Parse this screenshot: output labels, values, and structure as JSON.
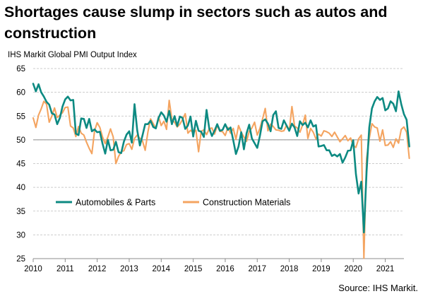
{
  "title": "Shortages cause slump in sectors such as autos and construction",
  "source": "Source: IHS Markit.",
  "chart_data": {
    "type": "line",
    "title": "Shortages cause slump in sectors such as autos and construction",
    "subtitle": "IHS Markit Global PMI Output Index",
    "xlabel": "",
    "ylabel": "",
    "x_start": "2010-01",
    "x_end": "2021-07",
    "x_ticks": [
      "2010",
      "2011",
      "2012",
      "2013",
      "2014",
      "2015",
      "2016",
      "2017",
      "2018",
      "2019",
      "2020",
      "2021"
    ],
    "y_ticks": [
      25,
      30,
      35,
      40,
      45,
      50,
      55,
      60,
      65
    ],
    "ylim": [
      25,
      65
    ],
    "reference_line": 50,
    "grid": "horizontal dashed",
    "legend_position": "lower-left",
    "series": [
      {
        "name": "Automobiles & Parts",
        "color": "#0d8a82",
        "values": [
          61.8,
          60.2,
          61.7,
          60.0,
          59.1,
          58.0,
          57.4,
          55.6,
          55.3,
          53.3,
          54.6,
          57.0,
          58.5,
          59.1,
          58.3,
          58.4,
          51.3,
          51.0,
          54.5,
          54.4,
          52.5,
          54.4,
          51.8,
          52.2,
          51.6,
          51.7,
          49.2,
          47.1,
          50.0,
          47.8,
          47.9,
          49.6,
          47.4,
          47.2,
          49.6,
          51.1,
          51.8,
          49.4,
          57.5,
          52.0,
          48.8,
          51.0,
          53.3,
          53.3,
          54.0,
          52.7,
          52.4,
          54.6,
          55.8,
          55.1,
          53.8,
          56.1,
          53.3,
          55.0,
          52.9,
          54.9,
          54.6,
          52.3,
          53.0,
          54.9,
          50.7,
          54.0,
          51.9,
          51.7,
          50.6,
          56.3,
          52.4,
          50.8,
          51.9,
          53.3,
          51.9,
          52.1,
          53.3,
          52.1,
          52.6,
          49.9,
          47.0,
          48.6,
          51.6,
          48.0,
          51.4,
          53.2,
          50.3,
          49.3,
          48.3,
          50.8,
          53.9,
          54.3,
          53.4,
          51.8,
          55.2,
          56.0,
          52.5,
          52.3,
          54.1,
          53.0,
          51.9,
          53.4,
          52.6,
          50.8,
          53.9,
          53.1,
          53.6,
          52.6,
          54.1,
          52.8,
          53.1,
          48.6,
          48.7,
          48.9,
          47.8,
          47.8,
          46.6,
          46.9,
          46.5,
          47.0,
          45.2,
          46.3,
          47.7,
          47.8,
          49.9,
          42.8,
          38.7,
          41.2,
          30.5,
          43.3,
          52.6,
          56.6,
          58.1,
          59.0,
          58.4,
          58.8,
          56.2,
          56.6,
          58.1,
          57.6,
          56.0,
          60.2,
          57.5,
          55.4,
          54.2,
          48.6
        ]
      },
      {
        "name": "Construction Materials",
        "color": "#f4a460",
        "values": [
          54.6,
          52.6,
          55.2,
          56.5,
          58.1,
          57.5,
          53.7,
          55.0,
          56.7,
          54.7,
          55.2,
          55.7,
          56.8,
          56.9,
          52.9,
          52.5,
          50.7,
          52.8,
          51.4,
          51.0,
          49.5,
          48.2,
          47.1,
          51.9,
          53.6,
          52.6,
          50.6,
          49.2,
          50.6,
          52.3,
          50.6,
          45.0,
          46.5,
          47.5,
          47.7,
          49.0,
          49.2,
          48.0,
          50.3,
          51.0,
          50.3,
          49.7,
          47.8,
          51.6,
          54.4,
          53.4,
          52.4,
          54.8,
          53.0,
          53.9,
          52.2,
          58.3,
          54.3,
          53.7,
          52.7,
          53.3,
          54.3,
          55.5,
          51.4,
          52.0,
          51.5,
          52.0,
          47.5,
          51.8,
          52.1,
          51.1,
          52.3,
          52.5,
          51.2,
          53.0,
          51.8,
          51.7,
          50.9,
          52.6,
          51.4,
          52.4,
          50.1,
          53.0,
          51.6,
          50.6,
          49.7,
          51.8,
          52.5,
          53.7,
          51.0,
          52.4,
          54.4,
          56.6,
          51.9,
          53.3,
          52.8,
          52.1,
          52.0,
          51.8,
          51.9,
          53.1,
          51.9,
          57.0,
          52.9,
          52.5,
          51.6,
          53.1,
          55.2,
          50.3,
          52.4,
          51.6,
          50.2,
          51.2,
          50.8,
          51.9,
          51.7,
          51.4,
          50.7,
          51.6,
          50.6,
          49.6,
          50.2,
          50.9,
          49.8,
          50.4,
          48.8,
          48.4,
          50.2,
          51.0,
          25.1,
          46.0,
          50.3,
          53.4,
          52.7,
          52.5,
          49.7,
          52.1,
          48.8,
          48.9,
          49.6,
          48.4,
          50.2,
          49.3,
          52.2,
          52.7,
          51.6,
          46.1
        ]
      }
    ]
  }
}
